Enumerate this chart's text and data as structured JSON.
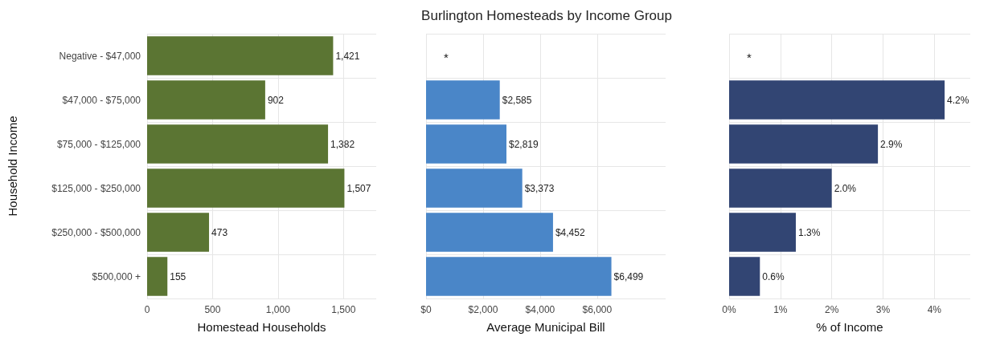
{
  "chart_data": [
    {
      "type": "bar",
      "orientation": "horizontal",
      "categories": [
        "Negative - $47,000",
        "$47,000 - $75,000",
        "$75,000 - $125,000",
        "$125,000 - $250,000",
        "$250,000 - $500,000",
        "$500,000 +"
      ],
      "values": [
        1421,
        902,
        1382,
        1507,
        473,
        155
      ],
      "value_labels": [
        "1,421",
        "902",
        "1,382",
        "1,507",
        "473",
        "155"
      ],
      "color": "#5b7533",
      "xlim": [
        0,
        1750
      ],
      "xticks": [
        0,
        500,
        {
          "value": 1000,
          "label": "1,000"
        },
        {
          "value": 1500,
          "label": "1,500"
        }
      ],
      "xlabel": "Homestead Households",
      "ylabel": "Household Income",
      "grid": true
    },
    {
      "type": "bar",
      "orientation": "horizontal",
      "categories": [
        null,
        null,
        null,
        null,
        null,
        null
      ],
      "values": [
        null,
        2585,
        2819,
        3373,
        4452,
        6499
      ],
      "title": "Burlington Homesteads by Income Group",
      "value_labels": [
        null,
        "$2,585",
        "$2,819",
        "$3,373",
        "$4,452",
        "$6,499"
      ],
      "color": "#4a86c8",
      "xlim": [
        0,
        8400
      ],
      "xticks": [
        {
          "value": 0,
          "label": "$0"
        },
        {
          "value": 2000,
          "label": "$2,000"
        },
        {
          "value": 4000,
          "label": "$4,000"
        },
        {
          "value": 6000,
          "label": "$6,000"
        }
      ],
      "xlabel": "Average Municipal Bill",
      "annotations": [
        "*"
      ],
      "tick_labels": "x",
      "grid": true
    },
    {
      "type": "bar",
      "orientation": "horizontal",
      "categories": [
        null,
        null,
        null,
        null,
        null,
        null
      ],
      "values": [
        null,
        4.2,
        2.9,
        2.0,
        1.3,
        0.6
      ],
      "value_labels": [
        null,
        "4.2%",
        "2.9%",
        "2.0%",
        "1.3%",
        "0.6%"
      ],
      "color": "#324573",
      "xlim": [
        0,
        4.7
      ],
      "xticks": [
        {
          "value": 0,
          "label": "0%"
        },
        {
          "value": 1,
          "label": "1%"
        },
        {
          "value": 2,
          "label": "2%"
        },
        {
          "value": 3,
          "label": "3%"
        },
        {
          "value": 4,
          "label": "4%"
        }
      ],
      "xlabel": "% of Income",
      "annotations": [
        "*"
      ],
      "tick_labels": "x",
      "grid": true
    }
  ]
}
